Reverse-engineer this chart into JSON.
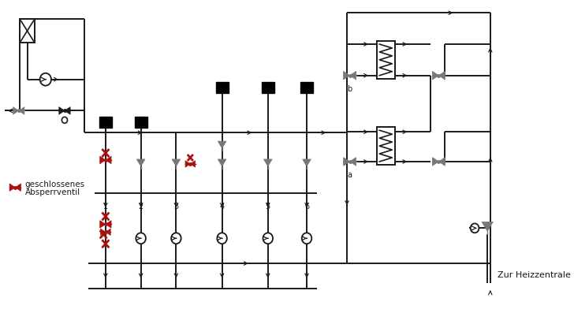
{
  "bg_color": "#ffffff",
  "line_color": "#1a1a1a",
  "red_color": "#aa1111",
  "gray_color": "#777777",
  "legend_text1": "geschlossenes",
  "legend_text2": "Absperrventil",
  "label_zur": "Zur Heizzentrale",
  "label_a": "a",
  "label_b": "b",
  "figsize": [
    7.28,
    3.97
  ],
  "dpi": 100
}
